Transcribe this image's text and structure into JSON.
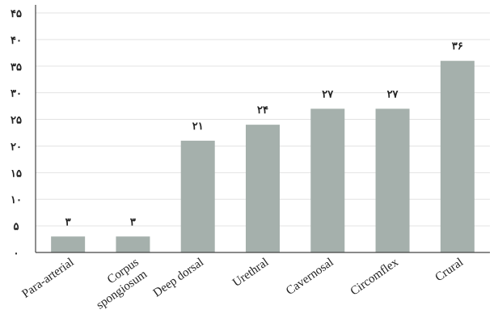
{
  "chart_data": {
    "type": "bar",
    "categories": [
      [
        "Para-arterial"
      ],
      [
        "Corpus",
        "spongiosum"
      ],
      [
        "Deep dorsal"
      ],
      [
        "Urethral"
      ],
      [
        "Cavernosal"
      ],
      [
        "Circomflex"
      ],
      [
        "Crural"
      ]
    ],
    "values": [
      3,
      3,
      21,
      24,
      27,
      27,
      36
    ],
    "data_labels": [
      "۳",
      "۳",
      "۲۱",
      "۲۴",
      "۲۷",
      "۲۷",
      "۳۶"
    ],
    "y_ticks": [
      0,
      5,
      10,
      15,
      20,
      25,
      30,
      35,
      40,
      45
    ],
    "y_tick_labels": [
      "۰",
      "۵",
      "۱۰",
      "۱۵",
      "۲۰",
      "۲۵",
      "۳۰",
      "۳۵",
      "۴۰",
      "۴۵"
    ],
    "ylim": [
      0,
      45
    ],
    "grid": true,
    "legend": "none",
    "bar_color": "#a5b0ac"
  }
}
